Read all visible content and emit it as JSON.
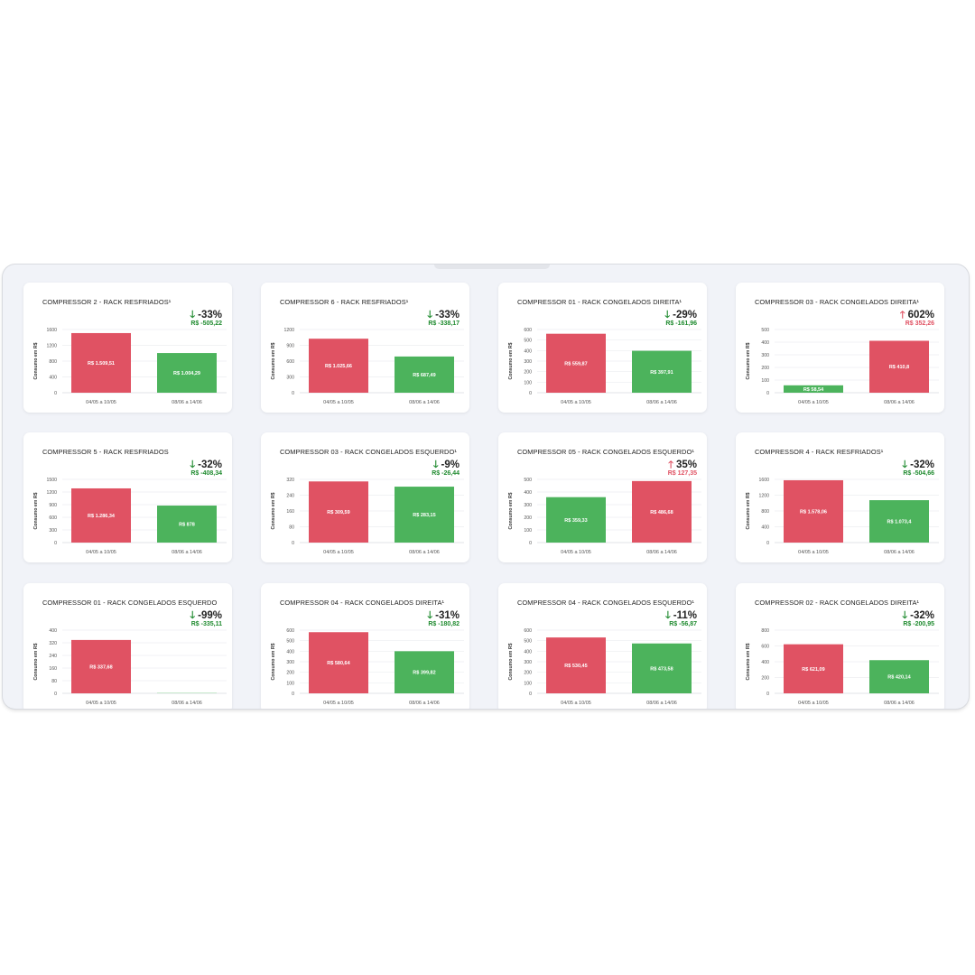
{
  "colors": {
    "increase": "#e05263",
    "decrease": "#4cb35c",
    "grid": "#eceef1",
    "text": "#555555",
    "faded_decrease": "#c8e9cd"
  },
  "chart_data": [
    {
      "type": "bar",
      "title": "COMPRESSOR 2 - RACK RESFRIADOS¹",
      "direction": "down",
      "change_percent": "-33%",
      "change_value": "R$ -505,22",
      "ylabel": "Consumo em R$",
      "ylim": [
        0,
        1600
      ],
      "yticks": [
        0,
        400,
        800,
        1200,
        1600
      ],
      "categories": [
        "04/05 a 10/05",
        "08/06 a 14/06"
      ],
      "values": [
        1509.51,
        1004.29
      ],
      "labels": [
        "R$ 1.509,51",
        "R$ 1.004,29"
      ],
      "bar_colors": [
        "increase",
        "decrease"
      ]
    },
    {
      "type": "bar",
      "title": "COMPRESSOR 6 - RACK RESFRIADOS¹",
      "direction": "down",
      "change_percent": "-33%",
      "change_value": "R$ -338,17",
      "ylabel": "Consumo em R$",
      "ylim": [
        0,
        1200
      ],
      "yticks": [
        0,
        300,
        600,
        900,
        1200
      ],
      "categories": [
        "04/05 a 10/05",
        "08/06 a 14/06"
      ],
      "values": [
        1025.66,
        687.49
      ],
      "labels": [
        "R$ 1.025,66",
        "R$ 687,49"
      ],
      "bar_colors": [
        "increase",
        "decrease"
      ]
    },
    {
      "type": "bar",
      "title": "COMPRESSOR 01 - RACK CONGELADOS DIREITA¹",
      "direction": "down",
      "change_percent": "-29%",
      "change_value": "R$ -161,96",
      "ylabel": "Consumo em R$",
      "ylim": [
        0,
        600
      ],
      "yticks": [
        0,
        100,
        200,
        300,
        400,
        500,
        600
      ],
      "categories": [
        "04/05 a 10/05",
        "08/06 a 14/06"
      ],
      "values": [
        559.87,
        397.91
      ],
      "labels": [
        "R$ 559,87",
        "R$ 397,91"
      ],
      "bar_colors": [
        "increase",
        "decrease"
      ]
    },
    {
      "type": "bar",
      "title": "COMPRESSOR 03 - RACK CONGELADOS DIREITA¹",
      "direction": "up",
      "change_percent": "602%",
      "change_value": "R$ 352,26",
      "ylabel": "Consumo em R$",
      "ylim": [
        0,
        500
      ],
      "yticks": [
        0,
        100,
        200,
        300,
        400,
        500
      ],
      "categories": [
        "04/05 a 10/05",
        "08/06 a 14/06"
      ],
      "values": [
        58.54,
        410.8
      ],
      "labels": [
        "R$ 58,54",
        "R$ 410,8"
      ],
      "bar_colors": [
        "decrease",
        "increase"
      ]
    },
    {
      "type": "bar",
      "title": "COMPRESSOR 5 - RACK RESFRIADOS",
      "direction": "down",
      "change_percent": "-32%",
      "change_value": "R$ -408,34",
      "ylabel": "Consumo em R$",
      "ylim": [
        0,
        1500
      ],
      "yticks": [
        0,
        300,
        600,
        900,
        1200,
        1500
      ],
      "categories": [
        "04/05 a 10/05",
        "08/06 a 14/06"
      ],
      "values": [
        1286.34,
        878
      ],
      "labels": [
        "R$ 1.286,34",
        "R$ 878"
      ],
      "bar_colors": [
        "increase",
        "decrease"
      ]
    },
    {
      "type": "bar",
      "title": "COMPRESSOR 03 - RACK CONGELADOS ESQUERDO¹",
      "direction": "down",
      "change_percent": "-9%",
      "change_value": "R$ -26,44",
      "ylabel": "Consumo em R$",
      "ylim": [
        0,
        320
      ],
      "yticks": [
        0,
        80,
        160,
        240,
        320
      ],
      "categories": [
        "04/05 a 10/05",
        "08/06 a 14/06"
      ],
      "values": [
        309.59,
        283.15
      ],
      "labels": [
        "R$ 309,59",
        "R$ 283,15"
      ],
      "bar_colors": [
        "increase",
        "decrease"
      ]
    },
    {
      "type": "bar",
      "title": "COMPRESSOR 05 - RACK CONGELADOS ESQUERDO¹",
      "direction": "up",
      "change_percent": "35%",
      "change_value": "R$ 127,35",
      "ylabel": "Consumo em R$",
      "ylim": [
        0,
        500
      ],
      "yticks": [
        0,
        100,
        200,
        300,
        400,
        500
      ],
      "categories": [
        "04/05 a 10/05",
        "08/06 a 14/06"
      ],
      "values": [
        359.33,
        486.68
      ],
      "labels": [
        "R$ 359,33",
        "R$ 486,68"
      ],
      "bar_colors": [
        "decrease",
        "increase"
      ]
    },
    {
      "type": "bar",
      "title": "COMPRESSOR 4 - RACK RESFRIADOS¹",
      "direction": "down",
      "change_percent": "-32%",
      "change_value": "R$ -504,66",
      "ylabel": "Consumo em R$",
      "ylim": [
        0,
        1600
      ],
      "yticks": [
        0,
        400,
        800,
        1200,
        1600
      ],
      "categories": [
        "04/05 a 10/05",
        "08/06 a 14/06"
      ],
      "values": [
        1578.06,
        1073.4
      ],
      "labels": [
        "R$ 1.578,06",
        "R$ 1.073,4"
      ],
      "bar_colors": [
        "increase",
        "decrease"
      ]
    },
    {
      "type": "bar",
      "title": "COMPRESSOR 01 - RACK CONGELADOS ESQUERDO",
      "direction": "down",
      "change_percent": "-99%",
      "change_value": "R$ -335,11",
      "ylabel": "Consumo em R$",
      "ylim": [
        0,
        400
      ],
      "yticks": [
        0,
        80,
        160,
        240,
        320,
        400
      ],
      "categories": [
        "04/05 a 10/05",
        "08/06 a 14/06"
      ],
      "values": [
        337.68,
        2.57
      ],
      "labels": [
        "R$ 337,68",
        ""
      ],
      "bar_colors": [
        "increase",
        "faded_decrease"
      ]
    },
    {
      "type": "bar",
      "title": "COMPRESSOR 04 - RACK CONGELADOS DIREITA¹",
      "direction": "down",
      "change_percent": "-31%",
      "change_value": "R$ -180,82",
      "ylabel": "Consumo em R$",
      "ylim": [
        0,
        600
      ],
      "yticks": [
        0,
        100,
        200,
        300,
        400,
        500,
        600
      ],
      "categories": [
        "04/05 a 10/05",
        "08/06 a 14/06"
      ],
      "values": [
        580.64,
        399.82
      ],
      "labels": [
        "R$ 580,64",
        "R$ 399,82"
      ],
      "bar_colors": [
        "increase",
        "decrease"
      ]
    },
    {
      "type": "bar",
      "title": "COMPRESSOR 04 - RACK CONGELADOS ESQUERDO¹",
      "direction": "down",
      "change_percent": "-11%",
      "change_value": "R$ -56,87",
      "ylabel": "Consumo em R$",
      "ylim": [
        0,
        600
      ],
      "yticks": [
        0,
        100,
        200,
        300,
        400,
        500,
        600
      ],
      "categories": [
        "04/05 a 10/05",
        "08/06 a 14/06"
      ],
      "values": [
        530.45,
        473.58
      ],
      "labels": [
        "R$ 530,45",
        "R$ 473,58"
      ],
      "bar_colors": [
        "increase",
        "decrease"
      ]
    },
    {
      "type": "bar",
      "title": "COMPRESSOR 02 - RACK CONGELADOS DIREITA¹",
      "direction": "down",
      "change_percent": "-32%",
      "change_value": "R$ -200,95",
      "ylabel": "Consumo em R$",
      "ylim": [
        0,
        800
      ],
      "yticks": [
        0,
        200,
        400,
        600,
        800
      ],
      "categories": [
        "04/05 a 10/05",
        "08/06 a 14/06"
      ],
      "values": [
        621.09,
        420.14
      ],
      "labels": [
        "R$ 621,09",
        "R$ 420,14"
      ],
      "bar_colors": [
        "increase",
        "decrease"
      ]
    }
  ]
}
